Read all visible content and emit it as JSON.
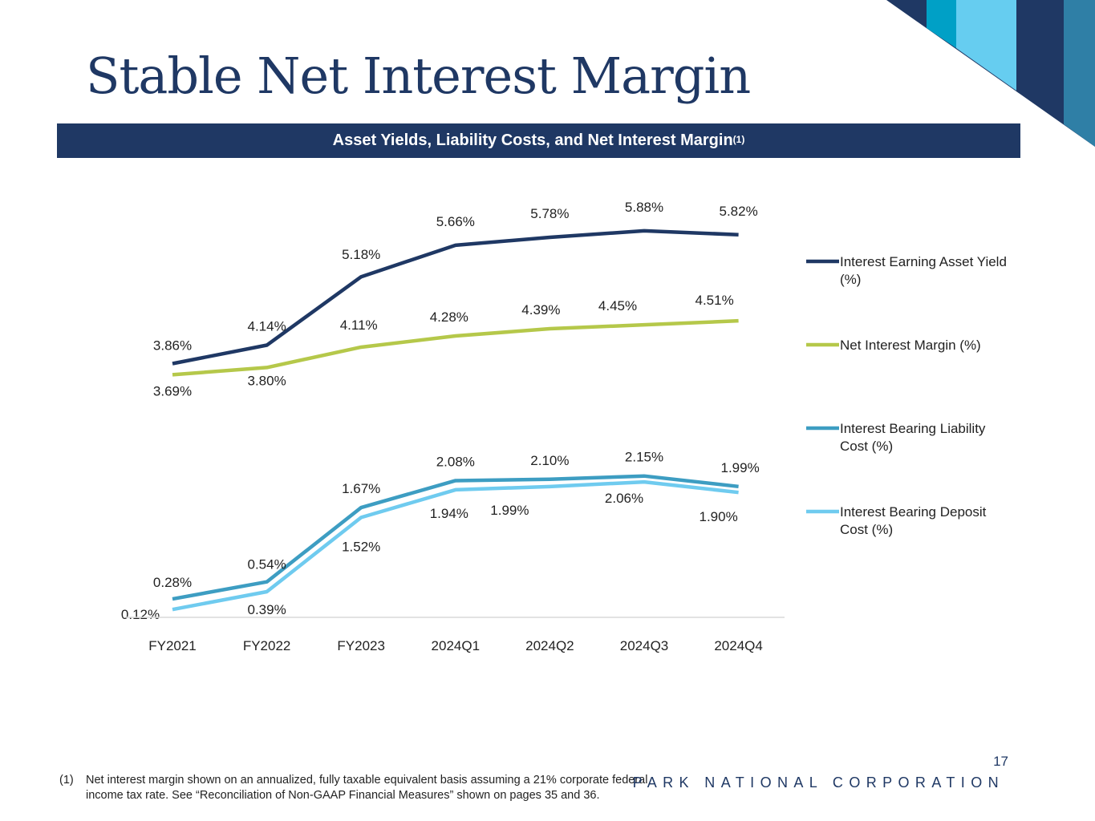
{
  "slide": {
    "title": "Stable Net Interest Margin",
    "banner": {
      "text": "Asset Yields, Liability Costs, and Net Interest Margin",
      "superscript": "(1)"
    },
    "footnote": {
      "marker": "(1)",
      "text": "Net interest margin shown on an annualized, fully taxable equivalent basis assuming a 21% corporate federal income tax rate. See “Reconciliation of Non-GAAP Financial Measures” shown on pages 35 and 36."
    },
    "page_number": "17",
    "company": "PARK NATIONAL CORPORATION",
    "colors": {
      "brand_navy": "#1f3864",
      "cyan": "#00a0c6",
      "light_blue": "#66cdf0",
      "steel_blue": "#2f7fa6"
    }
  },
  "chart_data": {
    "type": "line",
    "categories": [
      "FY2021",
      "FY2022",
      "FY2023",
      "2024Q1",
      "2024Q2",
      "2024Q3",
      "2024Q4"
    ],
    "series": [
      {
        "name": "Interest Earning Asset Yield (%)",
        "legend_lines": [
          "Interest Earning Asset Yield",
          "(%)"
        ],
        "color": "#1f3864",
        "values": [
          3.86,
          4.14,
          5.18,
          5.66,
          5.78,
          5.88,
          5.82
        ],
        "labels": [
          "3.86%",
          "4.14%",
          "5.18%",
          "5.66%",
          "5.78%",
          "5.88%",
          "5.82%"
        ]
      },
      {
        "name": "Net Interest Margin (%)",
        "legend_lines": [
          "Net Interest Margin (%)"
        ],
        "color": "#b5c84a",
        "values": [
          3.69,
          3.8,
          4.11,
          4.28,
          4.39,
          4.45,
          4.51
        ],
        "labels": [
          "3.69%",
          "3.80%",
          "4.11%",
          "4.28%",
          "4.39%",
          "4.45%",
          "4.51%"
        ]
      },
      {
        "name": "Interest Bearing Liability Cost (%)",
        "legend_lines": [
          "Interest Bearing Liability",
          "Cost (%)"
        ],
        "color": "#3d9dc2",
        "values": [
          0.28,
          0.54,
          1.67,
          2.08,
          2.1,
          2.15,
          1.99
        ],
        "labels": [
          "0.28%",
          "0.54%",
          "1.67%",
          "2.08%",
          "2.10%",
          "2.15%",
          "1.99%"
        ]
      },
      {
        "name": "Interest Bearing Deposit Cost (%)",
        "legend_lines": [
          "Interest Bearing Deposit",
          "Cost (%)"
        ],
        "color": "#6fcbef",
        "values": [
          0.12,
          0.39,
          1.52,
          1.94,
          1.99,
          2.06,
          1.9
        ],
        "labels": [
          "0.12%",
          "0.39%",
          "1.52%",
          "1.94%",
          "1.99%",
          "2.06%",
          "1.90%"
        ]
      }
    ],
    "ylim": [
      0,
      6.5
    ],
    "grid": false,
    "legend_position": "right"
  }
}
